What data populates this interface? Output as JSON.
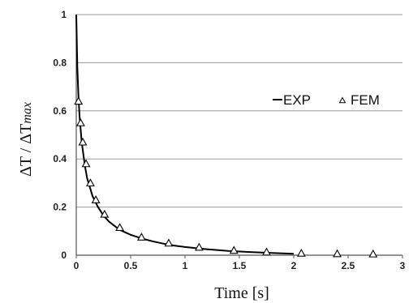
{
  "chart_data": {
    "type": "line",
    "title": "",
    "xlabel": "Time [s]",
    "ylabel": {
      "base": "ΔT / ΔT",
      "subscript": "max"
    },
    "xlim": [
      0,
      3
    ],
    "ylim": [
      0,
      1
    ],
    "xticks": [
      "0",
      "0.5",
      "1",
      "1.5",
      "2",
      "2.5",
      "3"
    ],
    "yticks": [
      "0",
      "0.2",
      "0.4",
      "0.6",
      "0.8",
      "1"
    ],
    "grid": "horizontal",
    "legend_position": "right",
    "series": [
      {
        "name": "EXP",
        "style": "solid-line",
        "color": "#000000",
        "x": [
          0.0,
          0.005,
          0.01,
          0.02,
          0.03,
          0.05,
          0.08,
          0.1,
          0.15,
          0.2,
          0.25,
          0.3,
          0.4,
          0.5,
          0.6,
          0.7,
          0.8,
          0.9,
          1.0,
          1.2,
          1.4,
          1.6,
          1.8,
          2.0
        ],
        "y": [
          1.0,
          0.88,
          0.78,
          0.66,
          0.58,
          0.47,
          0.37,
          0.32,
          0.245,
          0.2,
          0.165,
          0.14,
          0.105,
          0.085,
          0.07,
          0.058,
          0.048,
          0.04,
          0.034,
          0.025,
          0.018,
          0.013,
          0.009,
          0.006
        ]
      },
      {
        "name": "FEM",
        "style": "triangle-marker",
        "color": "#000000",
        "x": [
          0.02,
          0.04,
          0.06,
          0.09,
          0.13,
          0.18,
          0.26,
          0.4,
          0.6,
          0.85,
          1.13,
          1.45,
          1.75,
          2.07,
          2.4,
          2.73
        ],
        "y": [
          0.64,
          0.55,
          0.47,
          0.38,
          0.3,
          0.23,
          0.17,
          0.115,
          0.075,
          0.05,
          0.033,
          0.02,
          0.013,
          0.008,
          0.006,
          0.005
        ]
      }
    ]
  }
}
